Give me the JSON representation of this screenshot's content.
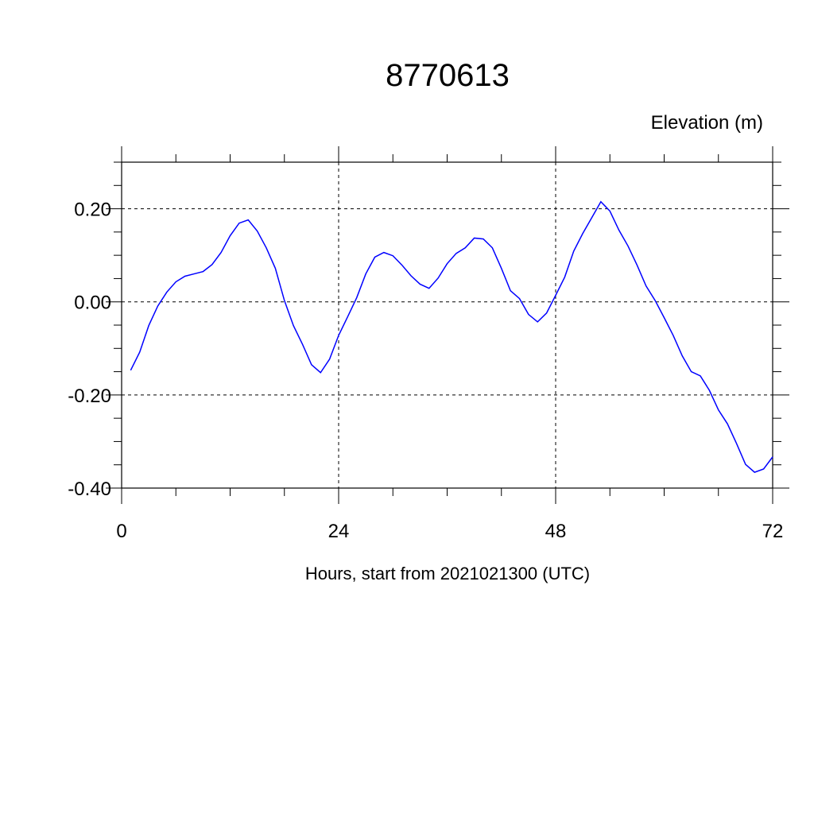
{
  "chart_data": {
    "type": "line",
    "title": "8770613",
    "subtitle": "Elevation (m)",
    "xlabel": "Hours, start from 2021021300 (UTC)",
    "ylabel": "",
    "xlim": [
      0,
      72
    ],
    "ylim": [
      -0.4,
      0.3
    ],
    "xticks": [
      0,
      24,
      48,
      72
    ],
    "xtick_labels": [
      "0",
      "24",
      "48",
      "72"
    ],
    "yticks": [
      0.2,
      0.0,
      -0.2,
      -0.4
    ],
    "ytick_labels": [
      "0.20",
      "0.00",
      "-0.20",
      "-0.40"
    ],
    "grid": true,
    "line_color": "#0000ff",
    "x": [
      1,
      2,
      3,
      4,
      5,
      6,
      7,
      8,
      9,
      10,
      11,
      12,
      13,
      14,
      15,
      16,
      17,
      18,
      19,
      20,
      21,
      22,
      23,
      24,
      25,
      26,
      27,
      28,
      29,
      30,
      31,
      32,
      33,
      34,
      35,
      36,
      37,
      38,
      39,
      40,
      41,
      42,
      43,
      44,
      45,
      46,
      47,
      48,
      49,
      50,
      51,
      52,
      53,
      54,
      55,
      56,
      57,
      58,
      59,
      60,
      61,
      62,
      63,
      64,
      65,
      66,
      67,
      68,
      69,
      70,
      71,
      72
    ],
    "values": [
      -0.147,
      -0.108,
      -0.051,
      -0.009,
      0.021,
      0.043,
      0.055,
      0.06,
      0.065,
      0.08,
      0.106,
      0.142,
      0.169,
      0.176,
      0.152,
      0.116,
      0.072,
      0.003,
      -0.051,
      -0.091,
      -0.135,
      -0.152,
      -0.123,
      -0.072,
      -0.032,
      0.009,
      0.06,
      0.096,
      0.106,
      0.099,
      0.079,
      0.056,
      0.038,
      0.029,
      0.051,
      0.082,
      0.104,
      0.116,
      0.137,
      0.135,
      0.116,
      0.072,
      0.024,
      0.007,
      -0.027,
      -0.043,
      -0.024,
      0.014,
      0.053,
      0.109,
      0.147,
      0.181,
      0.215,
      0.195,
      0.154,
      0.12,
      0.079,
      0.034,
      0.003,
      -0.034,
      -0.072,
      -0.116,
      -0.15,
      -0.159,
      -0.19,
      -0.232,
      -0.262,
      -0.304,
      -0.349,
      -0.366,
      -0.359,
      -0.333
    ]
  }
}
